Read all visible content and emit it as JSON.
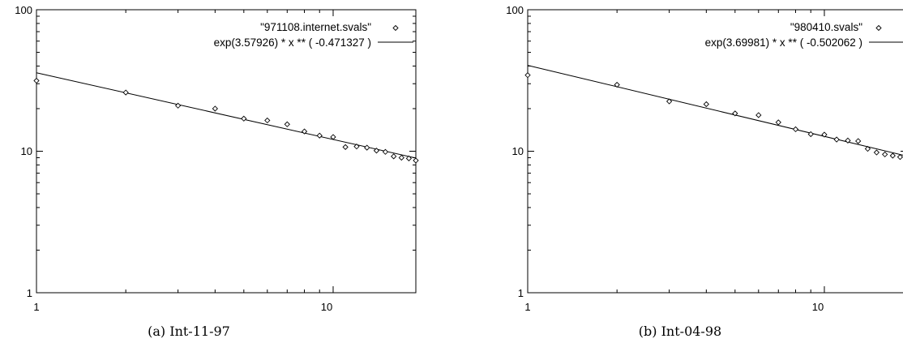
{
  "chart_data": [
    {
      "type": "scatter",
      "xscale": "log",
      "yscale": "log",
      "xlim": [
        1,
        19
      ],
      "ylim": [
        1,
        100
      ],
      "xticks": [
        "1",
        "10"
      ],
      "yticks": [
        "100",
        "10",
        "1"
      ],
      "xtick_values": [
        1,
        10
      ],
      "ytick_values": [
        100,
        10,
        1
      ],
      "caption": "(a) Int-11-97",
      "series": [
        {
          "name": "\"971108.internet.svals\"",
          "type": "scatter",
          "marker": "diamond",
          "x": [
            1,
            2,
            3,
            4,
            5,
            6,
            7,
            8,
            9,
            10,
            11,
            12,
            13,
            14,
            15,
            16,
            17,
            18,
            19
          ],
          "y": [
            31.5,
            26,
            21,
            20,
            17,
            16.5,
            15.5,
            13.8,
            12.9,
            12.6,
            10.7,
            10.8,
            10.6,
            10.1,
            9.9,
            9.2,
            9.0,
            8.9,
            8.6
          ]
        },
        {
          "name": "exp(3.57926)  * x ** (  -0.471327 )",
          "type": "line",
          "function": {
            "a": 3.57926,
            "b": -0.471327
          }
        }
      ]
    },
    {
      "type": "scatter",
      "xscale": "log",
      "yscale": "log",
      "xlim": [
        1,
        19
      ],
      "ylim": [
        1,
        100
      ],
      "xticks": [
        "1",
        "10"
      ],
      "yticks": [
        "100",
        "10",
        "1"
      ],
      "xtick_values": [
        1,
        10
      ],
      "ytick_values": [
        100,
        10,
        1
      ],
      "caption": "(b) Int-04-98",
      "series": [
        {
          "name": "\"980410.svals\"",
          "type": "scatter",
          "marker": "diamond",
          "x": [
            1,
            2,
            3,
            4,
            5,
            6,
            7,
            8,
            9,
            10,
            11,
            12,
            13,
            14,
            15,
            16,
            17,
            18,
            19
          ],
          "y": [
            34.5,
            29.5,
            22.5,
            21.5,
            18.5,
            18.0,
            16.0,
            14.3,
            13.2,
            13.1,
            12.1,
            11.9,
            11.8,
            10.4,
            9.8,
            9.5,
            9.3,
            9.1,
            8.8
          ]
        },
        {
          "name": "exp(3.69981)  * x ** (  -0.502062 )",
          "type": "line",
          "function": {
            "a": 3.69981,
            "b": -0.502062
          }
        }
      ]
    }
  ]
}
